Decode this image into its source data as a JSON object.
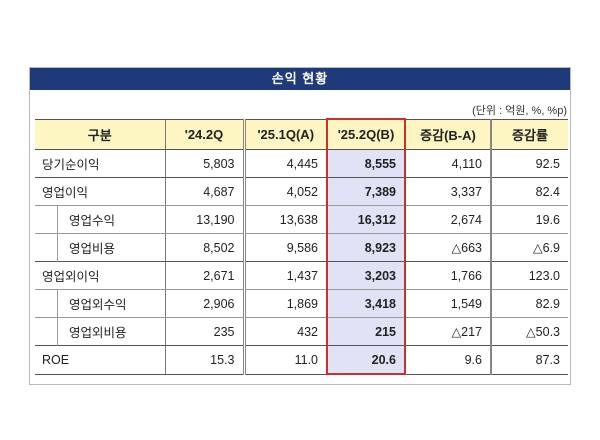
{
  "title": "손익 현황",
  "unit": "(단위 : 억원, %, %p)",
  "headers": [
    "구분",
    "'24.2Q",
    "'25.1Q(A)",
    "'25.2Q(B)",
    "증감(B-A)",
    "증감률"
  ],
  "rows": [
    {
      "label": "당기순이익",
      "indent": false,
      "values": [
        "5,803",
        "4,445",
        "8,555",
        "4,110",
        "92.5"
      ]
    },
    {
      "label": "영업이익",
      "indent": false,
      "values": [
        "4,687",
        "4,052",
        "7,389",
        "3,337",
        "82.4"
      ]
    },
    {
      "label": "영업수익",
      "indent": true,
      "values": [
        "13,190",
        "13,638",
        "16,312",
        "2,674",
        "19.6"
      ]
    },
    {
      "label": "영업비용",
      "indent": true,
      "values": [
        "8,502",
        "9,586",
        "8,923",
        "△663",
        "△6.9"
      ]
    },
    {
      "label": "영업외이익",
      "indent": false,
      "values": [
        "2,671",
        "1,437",
        "3,203",
        "1,766",
        "123.0"
      ]
    },
    {
      "label": "영업외수익",
      "indent": true,
      "values": [
        "2,906",
        "1,869",
        "3,418",
        "1,549",
        "82.9"
      ]
    },
    {
      "label": "영업외비용",
      "indent": true,
      "values": [
        "235",
        "432",
        "215",
        "△217",
        "△50.3"
      ]
    },
    {
      "label": "ROE",
      "indent": false,
      "values": [
        "15.3",
        "11.0",
        "20.6",
        "9.6",
        "87.3"
      ]
    }
  ],
  "colors": {
    "title_bg": "#1e3a7b",
    "header_bg": "#fdf5c2",
    "highlight_col_bg": "#dfe3f5",
    "highlight_border": "#c8302c"
  }
}
